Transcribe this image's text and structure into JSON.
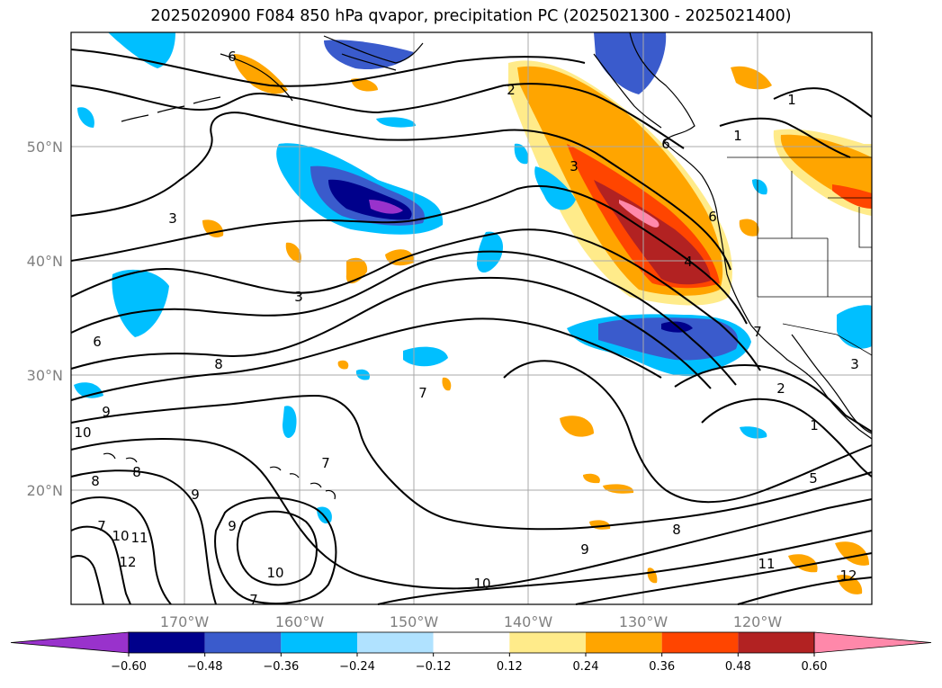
{
  "title": "2025020900 F084 850 hPa qvapor, precipitation PC (2025021300 - 2025021400)",
  "latitude_labels": [
    "50°N",
    "40°N",
    "30°N",
    "20°N"
  ],
  "longitude_labels": [
    "170°W",
    "160°W",
    "150°W",
    "140°W",
    "130°W",
    "120°W"
  ],
  "colorbar": {
    "colors": [
      "#9932cc",
      "#00008b",
      "#3a5bcc",
      "#00bfff",
      "#b0e2ff",
      "#ffffff",
      "#ffeb8a",
      "#ffa500",
      "#ff4500",
      "#b22222",
      "#ff88aa"
    ],
    "tick_labels": [
      "−0.60",
      "−0.48",
      "−0.36",
      "−0.24",
      "−0.12",
      "0.12",
      "0.24",
      "0.36",
      "0.48",
      "0.60"
    ],
    "extend": "both"
  },
  "contour_labels": [
    {
      "text": "2"
    },
    {
      "text": "3"
    },
    {
      "text": "3"
    },
    {
      "text": "3"
    },
    {
      "text": "1"
    },
    {
      "text": "6"
    },
    {
      "text": "6"
    },
    {
      "text": "4"
    },
    {
      "text": "1"
    },
    {
      "text": "6"
    },
    {
      "text": "8"
    },
    {
      "text": "9"
    },
    {
      "text": "10"
    },
    {
      "text": "8"
    },
    {
      "text": "8"
    },
    {
      "text": "7"
    },
    {
      "text": "9"
    },
    {
      "text": "7"
    },
    {
      "text": "9"
    },
    {
      "text": "10"
    },
    {
      "text": "11"
    },
    {
      "text": "12"
    },
    {
      "text": "7"
    },
    {
      "text": "7"
    },
    {
      "text": "10"
    },
    {
      "text": "10"
    },
    {
      "text": "9"
    },
    {
      "text": "8"
    },
    {
      "text": "11"
    },
    {
      "text": "12"
    },
    {
      "text": "7"
    },
    {
      "text": "2"
    },
    {
      "text": "1"
    },
    {
      "text": "5"
    },
    {
      "text": "6"
    },
    {
      "text": "3"
    }
  ]
}
